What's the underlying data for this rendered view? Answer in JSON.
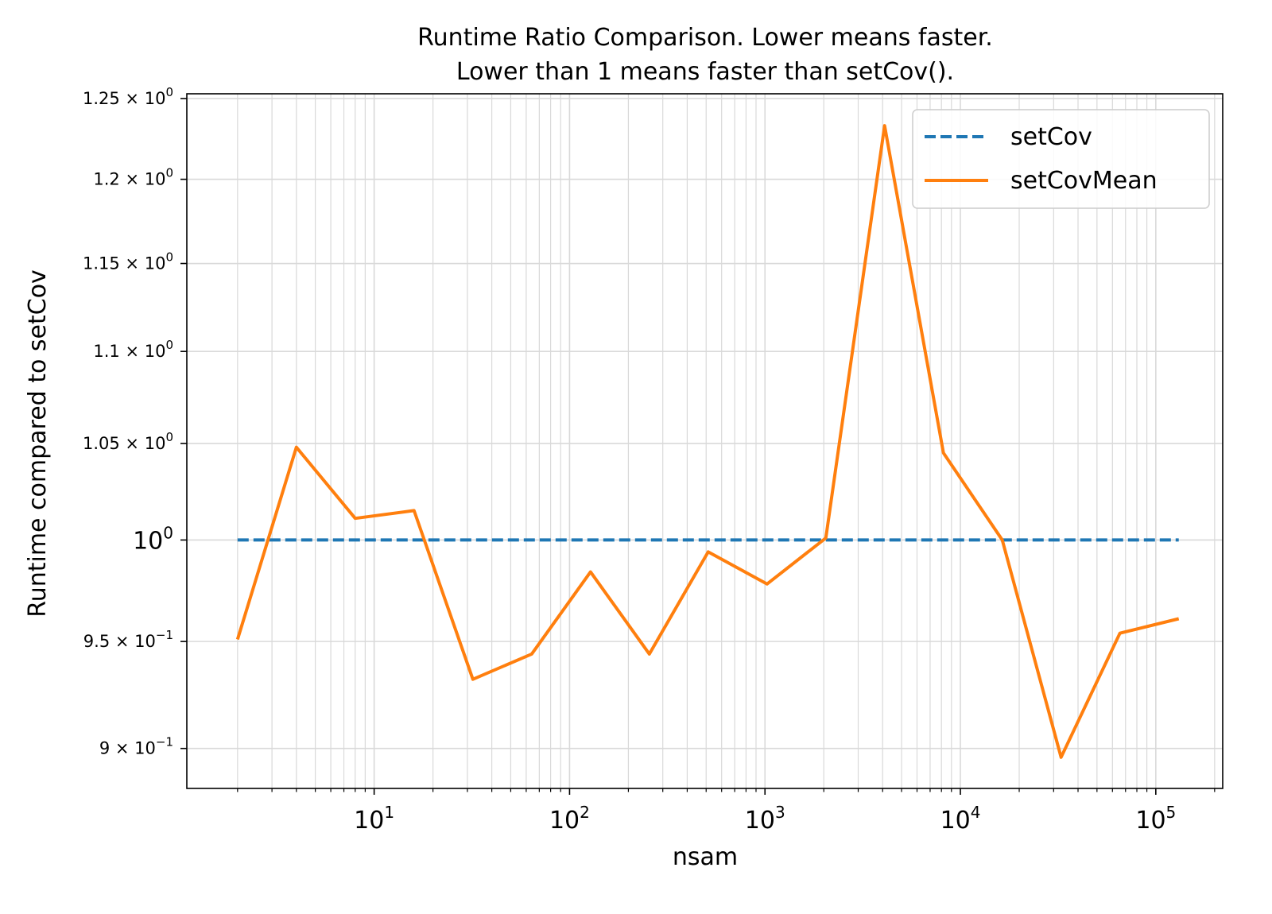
{
  "chart_data": {
    "type": "line",
    "title": [
      "Runtime Ratio Comparison. Lower means faster.",
      "Lower than 1 means faster than setCov()."
    ],
    "xlabel": "nsam",
    "ylabel": "Runtime compared to setCov",
    "xscale": "log",
    "yscale": "log",
    "xlim": [
      1.1,
      220000
    ],
    "ylim": [
      0.882,
      1.253
    ],
    "grid": "both",
    "legend_position": "top-right",
    "xticks": [
      {
        "value": 10,
        "base": "10",
        "exp": "1"
      },
      {
        "value": 100,
        "base": "10",
        "exp": "2"
      },
      {
        "value": 1000,
        "base": "10",
        "exp": "3"
      },
      {
        "value": 10000,
        "base": "10",
        "exp": "4"
      },
      {
        "value": 100000,
        "base": "10",
        "exp": "5"
      }
    ],
    "yticks": [
      {
        "value": 0.9,
        "mantissa": "9 × ",
        "base": "10",
        "exp": "−1"
      },
      {
        "value": 0.95,
        "mantissa": "9.5 × ",
        "base": "10",
        "exp": "−1"
      },
      {
        "value": 1.0,
        "mantissa": "",
        "base": "10",
        "exp": "0"
      },
      {
        "value": 1.05,
        "mantissa": "1.05 × ",
        "base": "10",
        "exp": "0"
      },
      {
        "value": 1.1,
        "mantissa": "1.1 × ",
        "base": "10",
        "exp": "0"
      },
      {
        "value": 1.15,
        "mantissa": "1.15 × ",
        "base": "10",
        "exp": "0"
      },
      {
        "value": 1.2,
        "mantissa": "1.2 × ",
        "base": "10",
        "exp": "0"
      },
      {
        "value": 1.25,
        "mantissa": "1.25 × ",
        "base": "10",
        "exp": "0"
      }
    ],
    "x": [
      2,
      4,
      8,
      16,
      32,
      64,
      128,
      256,
      512,
      1024,
      2048,
      4096,
      8192,
      16384,
      32768,
      65536,
      131072
    ],
    "series": [
      {
        "name": "setCov",
        "style": "dashed",
        "color": "#1f77b4",
        "values": [
          1,
          1,
          1,
          1,
          1,
          1,
          1,
          1,
          1,
          1,
          1,
          1,
          1,
          1,
          1,
          1,
          1
        ]
      },
      {
        "name": "setCovMean",
        "style": "solid",
        "color": "#ff7f0e",
        "values": [
          0.951,
          1.048,
          1.011,
          1.015,
          0.932,
          0.944,
          0.984,
          0.944,
          0.994,
          0.978,
          1.001,
          1.233,
          1.045,
          1.0,
          0.896,
          0.954,
          0.961
        ]
      }
    ]
  }
}
